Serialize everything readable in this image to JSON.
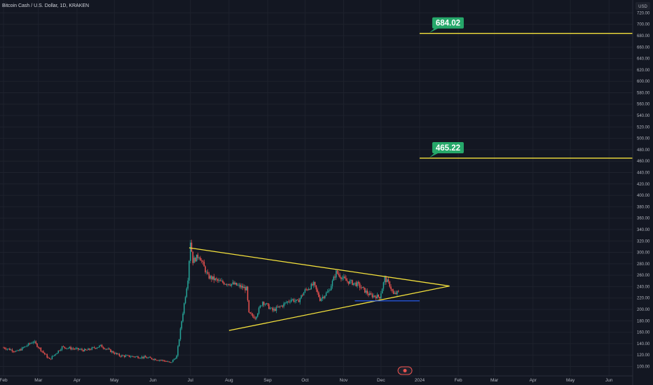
{
  "header": {
    "title": "Bitcoin Cash / U.S. Dollar, 1D, KRAKEN"
  },
  "axis": {
    "currency": "USD"
  },
  "chart_data": {
    "type": "candlestick",
    "title": "Bitcoin Cash / U.S. Dollar, 1D, KRAKEN",
    "ylabel": "USD",
    "ylim": [
      92,
      734
    ],
    "ytick_labels": [
      "100.00",
      "120.00",
      "140.00",
      "160.00",
      "180.00",
      "200.00",
      "220.00",
      "240.00",
      "260.00",
      "280.00",
      "300.00",
      "320.00",
      "340.00",
      "360.00",
      "380.00",
      "400.00",
      "420.00",
      "440.00",
      "460.00",
      "480.00",
      "500.00",
      "520.00",
      "540.00",
      "560.00",
      "580.00",
      "600.00",
      "620.00",
      "640.00",
      "660.00",
      "680.00",
      "700.00",
      "720.00"
    ],
    "xtick_labels": [
      "Feb",
      "Mar",
      "Apr",
      "May",
      "Jun",
      "Jul",
      "Aug",
      "Sep",
      "Oct",
      "Nov",
      "Dec",
      "2024",
      "Feb",
      "Mar",
      "Apr",
      "May",
      "Jun"
    ],
    "xlim": [
      "2023-02-01",
      "2024-06-20"
    ],
    "grid": true,
    "colors": {
      "up": "#26a69a",
      "down": "#ef5350",
      "trendline": "#f5e23c",
      "label_bg": "#26a86a"
    },
    "anchor_points": [
      {
        "date": "2023-02-01",
        "price": 133
      },
      {
        "date": "2023-02-12",
        "price": 126
      },
      {
        "date": "2023-02-25",
        "price": 144
      },
      {
        "date": "2023-03-10",
        "price": 112
      },
      {
        "date": "2023-03-20",
        "price": 134
      },
      {
        "date": "2023-04-08",
        "price": 128
      },
      {
        "date": "2023-04-20",
        "price": 136
      },
      {
        "date": "2023-05-05",
        "price": 119
      },
      {
        "date": "2023-05-25",
        "price": 116
      },
      {
        "date": "2023-06-10",
        "price": 110
      },
      {
        "date": "2023-06-15",
        "price": 106
      },
      {
        "date": "2023-06-20",
        "price": 118
      },
      {
        "date": "2023-06-25",
        "price": 195
      },
      {
        "date": "2023-06-29",
        "price": 255
      },
      {
        "date": "2023-07-01",
        "price": 320
      },
      {
        "date": "2023-07-03",
        "price": 285
      },
      {
        "date": "2023-07-08",
        "price": 295
      },
      {
        "date": "2023-07-15",
        "price": 258
      },
      {
        "date": "2023-07-25",
        "price": 248
      },
      {
        "date": "2023-08-05",
        "price": 244
      },
      {
        "date": "2023-08-15",
        "price": 236
      },
      {
        "date": "2023-08-17",
        "price": 192
      },
      {
        "date": "2023-08-22",
        "price": 186
      },
      {
        "date": "2023-08-28",
        "price": 214
      },
      {
        "date": "2023-09-05",
        "price": 198
      },
      {
        "date": "2023-09-12",
        "price": 206
      },
      {
        "date": "2023-09-20",
        "price": 218
      },
      {
        "date": "2023-09-25",
        "price": 213
      },
      {
        "date": "2023-10-01",
        "price": 233
      },
      {
        "date": "2023-10-08",
        "price": 244
      },
      {
        "date": "2023-10-13",
        "price": 218
      },
      {
        "date": "2023-10-20",
        "price": 232
      },
      {
        "date": "2023-10-26",
        "price": 265
      },
      {
        "date": "2023-11-03",
        "price": 250
      },
      {
        "date": "2023-11-12",
        "price": 244
      },
      {
        "date": "2023-11-22",
        "price": 225
      },
      {
        "date": "2023-11-30",
        "price": 222
      },
      {
        "date": "2023-12-04",
        "price": 254
      },
      {
        "date": "2023-12-08",
        "price": 243
      },
      {
        "date": "2023-12-11",
        "price": 226
      },
      {
        "date": "2023-12-15",
        "price": 230
      }
    ],
    "annotations": [
      {
        "type": "horizontal_ray",
        "price": 684.02,
        "from": "2024-01-01",
        "label": "684.02"
      },
      {
        "type": "horizontal_ray",
        "price": 465.22,
        "from": "2024-01-01",
        "label": "465.22"
      },
      {
        "type": "triangle_upper",
        "from": {
          "date": "2023-06-30",
          "price": 308
        },
        "to": {
          "date": "2024-01-25",
          "price": 241
        }
      },
      {
        "type": "triangle_lower",
        "from": {
          "date": "2023-08-01",
          "price": 163
        },
        "to": {
          "date": "2024-01-25",
          "price": 241
        }
      },
      {
        "type": "support_line",
        "price": 215,
        "from": "2023-11-10",
        "to": "2024-01-01"
      }
    ]
  }
}
